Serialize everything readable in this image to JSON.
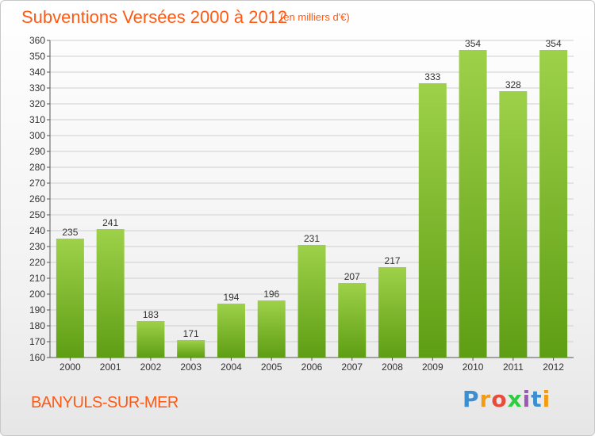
{
  "title": "Subventions Versées 2000 à 2012",
  "unit_label": "(en milliers d'€)",
  "place": "BANYULS-SUR-MER",
  "logo": {
    "text": "Proxiti",
    "colors": [
      "#3b8fd1",
      "#f39c12",
      "#e74c3c",
      "#2ecc40",
      "#9b59b6",
      "#3b8fd1",
      "#f39c12"
    ]
  },
  "colors": {
    "bar_top": "#9ed14a",
    "bar_bottom": "#5e9e14",
    "grid": "#cfcfcf",
    "accent": "#ff5a14"
  },
  "chart_data": {
    "type": "bar",
    "categories": [
      "2000",
      "2001",
      "2002",
      "2003",
      "2004",
      "2005",
      "2006",
      "2007",
      "2008",
      "2009",
      "2010",
      "2011",
      "2012"
    ],
    "values": [
      235,
      241,
      183,
      171,
      194,
      196,
      231,
      207,
      217,
      333,
      354,
      328,
      354
    ],
    "ylim": [
      160,
      360
    ],
    "ytick_step": 10,
    "grid": true,
    "data_labels": true
  }
}
